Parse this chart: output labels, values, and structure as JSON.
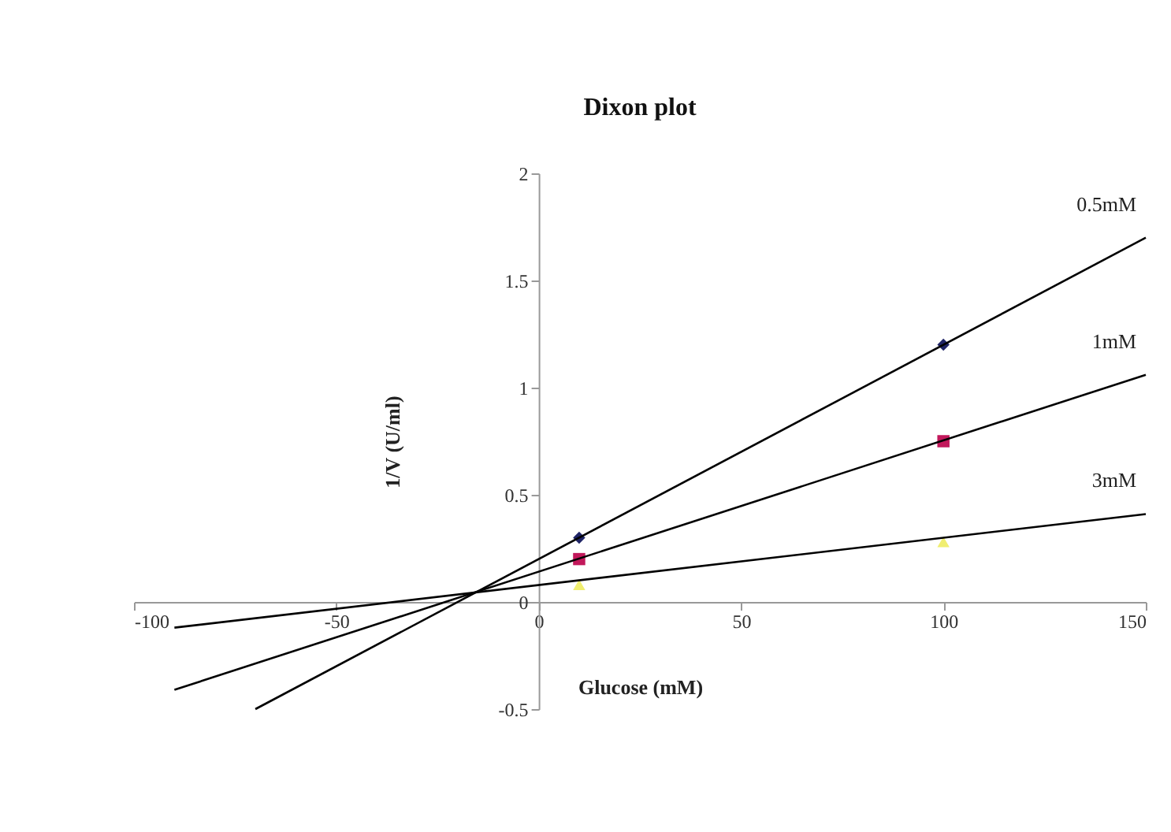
{
  "chart_data": {
    "type": "scatter",
    "title": "Dixon plot",
    "xlabel": "Glucose (mM)",
    "ylabel": "1/V (U/ml)",
    "xlim": [
      -100,
      150
    ],
    "xticks": [
      -100,
      -50,
      0,
      50,
      100,
      150
    ],
    "ylim": [
      -0.5,
      2
    ],
    "yticks": [
      -0.5,
      0,
      0.5,
      1,
      1.5,
      2
    ],
    "grid": false,
    "series": [
      {
        "color": "#1f2466",
        "marker": "diamond",
        "x": [
          10,
          100
        ],
        "values": [
          0.3,
          1.2
        ]
      },
      {
        "color": "#c2185b",
        "marker": "square",
        "x": [
          10,
          100
        ],
        "values": [
          0.2,
          0.75
        ]
      },
      {
        "color": "#f0ee70",
        "marker": "triangle",
        "x": [
          10,
          100
        ],
        "values": [
          0.08,
          0.28
        ]
      },
      {
        "type": "line",
        "name": "0.5mM",
        "color": "#000000",
        "x": [
          -70,
          150
        ],
        "values": [
          -0.5,
          1.7
        ]
      },
      {
        "type": "line",
        "name": "1mM",
        "color": "#000000",
        "x": [
          -90,
          150
        ],
        "values": [
          -0.41,
          1.06
        ]
      },
      {
        "type": "line",
        "name": "3mM",
        "color": "#000000",
        "x": [
          -90,
          150
        ],
        "values": [
          -0.12,
          0.41
        ]
      }
    ]
  }
}
